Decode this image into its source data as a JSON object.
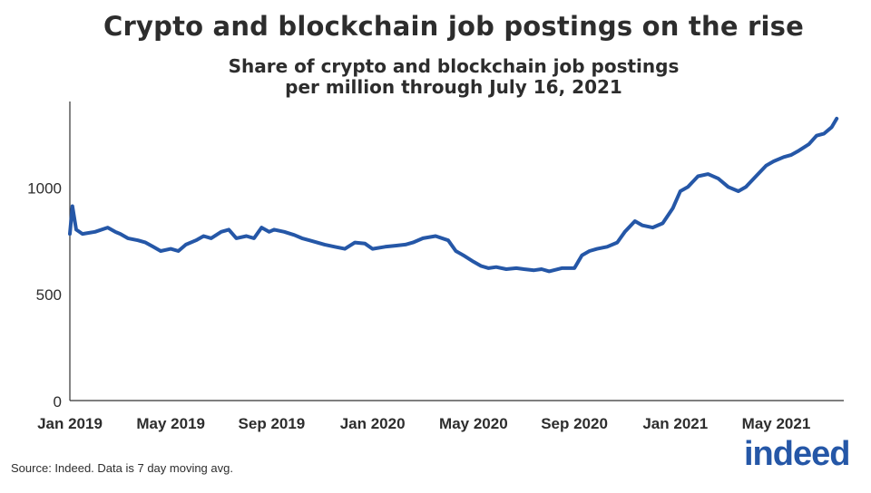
{
  "title": "Crypto and blockchain job postings on the rise",
  "subtitle_line1": "Share of crypto and blockchain job postings",
  "subtitle_line2": "per million through July 16, 2021",
  "source": "Source: Indeed. Data is 7 day moving avg.",
  "logo_text": "indeed",
  "colors": {
    "line": "#2557a7",
    "axis": "#333333",
    "text": "#2d2d2d"
  },
  "chart_data": {
    "type": "line",
    "title": "Crypto and blockchain job postings on the rise",
    "xlabel": "",
    "ylabel": "",
    "ylim": [
      0,
      1400
    ],
    "yticks": [
      0,
      500,
      1000
    ],
    "ytick_labels": [
      "0",
      "500",
      "1000"
    ],
    "xlim": [
      0,
      30.5
    ],
    "xtick_positions": [
      0,
      4,
      8,
      12,
      16,
      20,
      24,
      28
    ],
    "xtick_labels": [
      "Jan 2019",
      "May 2019",
      "Sep 2019",
      "Jan 2020",
      "May 2020",
      "Sep 2020",
      "Jan 2021",
      "May 2021"
    ],
    "grid": false,
    "series": [
      {
        "name": "Crypto and blockchain job postings per million",
        "x": [
          0,
          0.1,
          0.25,
          0.5,
          1.0,
          1.5,
          1.8,
          2.0,
          2.3,
          2.7,
          3.0,
          3.3,
          3.6,
          4.0,
          4.3,
          4.6,
          5.0,
          5.3,
          5.6,
          6.0,
          6.3,
          6.6,
          7.0,
          7.3,
          7.6,
          7.9,
          8.1,
          8.5,
          8.9,
          9.2,
          9.5,
          9.8,
          10.1,
          10.5,
          10.9,
          11.3,
          11.7,
          12.0,
          12.5,
          12.9,
          13.3,
          13.6,
          14.0,
          14.5,
          15.0,
          15.3,
          15.6,
          16.0,
          16.3,
          16.6,
          16.9,
          17.3,
          17.7,
          18.0,
          18.4,
          18.7,
          19.0,
          19.5,
          20.0,
          20.3,
          20.6,
          20.9,
          21.3,
          21.7,
          22.0,
          22.4,
          22.7,
          23.1,
          23.5,
          23.9,
          24.2,
          24.5,
          24.9,
          25.3,
          25.7,
          26.1,
          26.5,
          26.8,
          27.2,
          27.6,
          27.9,
          28.3,
          28.6,
          28.9,
          29.3,
          29.6,
          29.9,
          30.2,
          30.4
        ],
        "y": [
          780,
          910,
          800,
          780,
          790,
          810,
          790,
          780,
          760,
          750,
          740,
          720,
          700,
          710,
          700,
          730,
          750,
          770,
          760,
          790,
          800,
          760,
          770,
          760,
          810,
          790,
          800,
          790,
          775,
          760,
          750,
          740,
          730,
          720,
          710,
          740,
          735,
          710,
          720,
          725,
          730,
          740,
          760,
          770,
          750,
          700,
          680,
          650,
          630,
          620,
          625,
          615,
          620,
          615,
          610,
          615,
          605,
          620,
          620,
          680,
          700,
          710,
          720,
          740,
          790,
          840,
          820,
          810,
          830,
          900,
          980,
          1000,
          1050,
          1060,
          1040,
          1000,
          980,
          1000,
          1050,
          1100,
          1120,
          1140,
          1150,
          1170,
          1200,
          1240,
          1250,
          1280,
          1320
        ]
      }
    ]
  }
}
